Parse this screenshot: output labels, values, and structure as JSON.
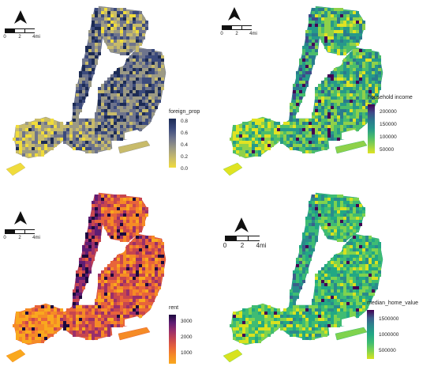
{
  "scale_units": "mi",
  "panels": [
    {
      "id": "foreign",
      "legend_title": "foreign_prop",
      "legend_labels": [
        "0.8",
        "0.6",
        "0.4",
        "0.2",
        "0.0"
      ],
      "scale_ticks": [
        "0",
        "2",
        "4mi"
      ],
      "colors": [
        "#f0dc3c",
        "#c8bb6a",
        "#9c9a84",
        "#6e748c",
        "#3b4a7c",
        "#1c2b55"
      ],
      "palette": "cividis"
    },
    {
      "id": "income",
      "legend_title": "household income",
      "legend_labels": [
        "200000",
        "150000",
        "100000",
        "50000"
      ],
      "scale_ticks": [
        "0",
        "2",
        "4mi"
      ],
      "colors": [
        "#e0e322",
        "#8fd14a",
        "#4bbd6b",
        "#26998a",
        "#2a7a8e",
        "#3f4a8a",
        "#440154"
      ],
      "palette": "viridis"
    },
    {
      "id": "rent",
      "legend_title": "rent",
      "legend_labels": [
        "3000",
        "2000",
        "1000"
      ],
      "scale_ticks": [
        "0",
        "2",
        "4mi"
      ],
      "colors": [
        "#f9a81e",
        "#f58b26",
        "#e8643a",
        "#c7464f",
        "#9a2f6a",
        "#5f1d73",
        "#1c0a3e"
      ],
      "palette": "plasma"
    },
    {
      "id": "homevalue",
      "legend_title": "median_home_value",
      "legend_labels": [
        "1500000",
        "1000000",
        "500000"
      ],
      "scale_ticks": [
        "0",
        "2",
        "4mi"
      ],
      "colors": [
        "#d8e21f",
        "#7fd34e",
        "#3fbc73",
        "#22a884",
        "#2a8a8c",
        "#3b5f8c",
        "#440154"
      ],
      "palette": "viridis"
    }
  ]
}
